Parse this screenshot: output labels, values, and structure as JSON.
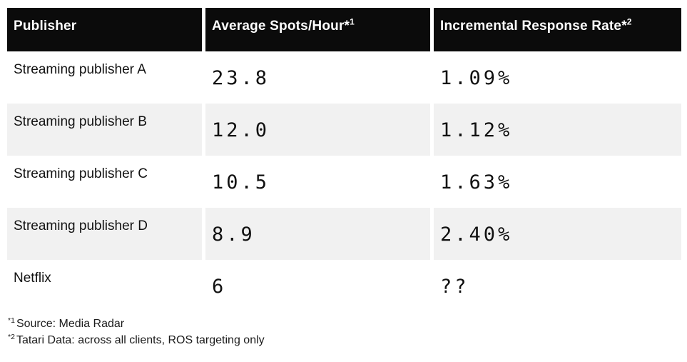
{
  "header": {
    "columns": [
      {
        "label": "Publisher",
        "sup": ""
      },
      {
        "label": "Average Spots/Hour*",
        "sup": "1"
      },
      {
        "label": "Incremental Response Rate*",
        "sup": "2"
      }
    ]
  },
  "rows": [
    {
      "publisher": "Streaming publisher A",
      "spots_per_hour": "23.8",
      "response_rate": "1.09%"
    },
    {
      "publisher": "Streaming publisher B",
      "spots_per_hour": "12.0",
      "response_rate": "1.12%"
    },
    {
      "publisher": "Streaming publisher C",
      "spots_per_hour": "10.5",
      "response_rate": "1.63%"
    },
    {
      "publisher": "Streaming publisher D",
      "spots_per_hour": "8.9",
      "response_rate": "2.40%"
    },
    {
      "publisher": "Netflix",
      "spots_per_hour": "6",
      "response_rate": "??"
    }
  ],
  "footnotes": [
    {
      "marker": "*1",
      "text": "Source: Media Radar"
    },
    {
      "marker": "*2",
      "text": "Tatari Data: across all clients, ROS targeting only"
    }
  ],
  "colors": {
    "header_bg": "#0b0b0b",
    "header_text": "#ffffff",
    "row_alt_bg": "#f1f1f1",
    "body_text": "#111111"
  },
  "chart_data": {
    "type": "table",
    "columns": [
      "Publisher",
      "Average Spots/Hour*1",
      "Incremental Response Rate*2"
    ],
    "rows": [
      [
        "Streaming publisher A",
        "23.8",
        "1.09%"
      ],
      [
        "Streaming publisher B",
        "12.0",
        "1.12%"
      ],
      [
        "Streaming publisher C",
        "10.5",
        "1.63%"
      ],
      [
        "Streaming publisher D",
        "8.9",
        "2.40%"
      ],
      [
        "Netflix",
        "6",
        "??"
      ]
    ],
    "footnotes": [
      "*1 Source: Media Radar",
      "*2 Tatari Data: across all clients, ROS targeting only"
    ]
  }
}
